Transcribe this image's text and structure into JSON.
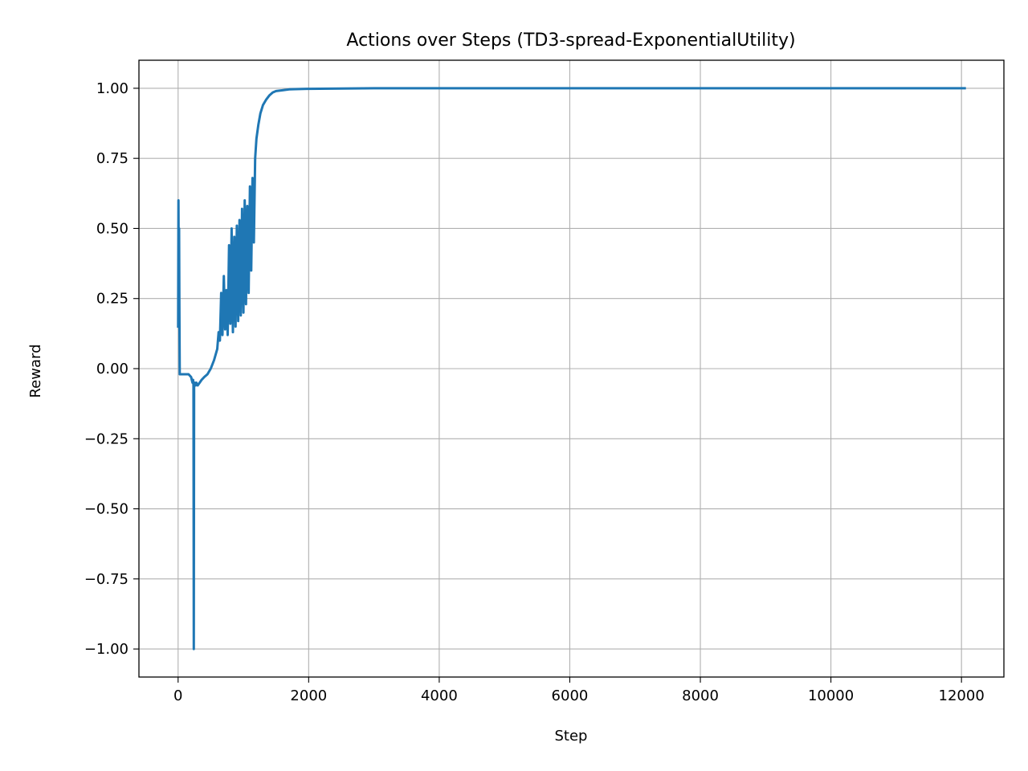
{
  "chart_data": {
    "type": "line",
    "title": "Actions over Steps (TD3-spread-ExponentialUtility)",
    "xlabel": "Step",
    "ylabel": "Reward",
    "xlim": [
      -600,
      12650
    ],
    "ylim": [
      -1.1,
      1.1
    ],
    "grid": true,
    "line_color": "#1f77b4",
    "x_ticks": [
      0,
      2000,
      4000,
      6000,
      8000,
      10000,
      12000
    ],
    "x_tick_labels": [
      "0",
      "2000",
      "4000",
      "6000",
      "8000",
      "10000",
      "12000"
    ],
    "y_ticks": [
      1.0,
      0.75,
      0.5,
      0.25,
      0.0,
      -0.25,
      -0.5,
      -0.75,
      -1.0
    ],
    "y_tick_labels": [
      "1.00",
      "0.75",
      "0.50",
      "0.25",
      "0.00",
      "−0.25",
      "−0.50",
      "−0.75",
      "−1.00"
    ],
    "series": [
      {
        "x": [
          0,
          5,
          10,
          15,
          20,
          25,
          30,
          40,
          80,
          120,
          160,
          200,
          210,
          220,
          230,
          235,
          240,
          245,
          250,
          255,
          260,
          270,
          280,
          300,
          330,
          360,
          400,
          450,
          500,
          550,
          600,
          620,
          640,
          660,
          680,
          700,
          720,
          740,
          760,
          780,
          800,
          820,
          840,
          860,
          880,
          900,
          920,
          940,
          960,
          980,
          1000,
          1020,
          1040,
          1060,
          1080,
          1100,
          1120,
          1140,
          1160,
          1180,
          1200,
          1230,
          1260,
          1300,
          1350,
          1400,
          1450,
          1500,
          1600,
          1700,
          1800,
          2000,
          2500,
          3000,
          4000,
          5000,
          6000,
          7000,
          8000,
          9000,
          10000,
          11000,
          12050
        ],
        "y": [
          0.15,
          0.6,
          0.3,
          0.5,
          0.2,
          -0.02,
          -0.02,
          -0.02,
          -0.02,
          -0.02,
          -0.02,
          -0.03,
          -0.04,
          -0.05,
          -0.04,
          -0.06,
          -1.0,
          -0.05,
          -0.05,
          -0.06,
          -0.05,
          -0.06,
          -0.05,
          -0.06,
          -0.05,
          -0.04,
          -0.03,
          -0.02,
          0.0,
          0.03,
          0.07,
          0.13,
          0.1,
          0.27,
          0.12,
          0.33,
          0.14,
          0.28,
          0.12,
          0.44,
          0.16,
          0.5,
          0.13,
          0.47,
          0.15,
          0.51,
          0.17,
          0.53,
          0.19,
          0.57,
          0.2,
          0.6,
          0.23,
          0.58,
          0.27,
          0.65,
          0.35,
          0.68,
          0.45,
          0.75,
          0.82,
          0.87,
          0.91,
          0.94,
          0.96,
          0.975,
          0.985,
          0.99,
          0.993,
          0.996,
          0.997,
          0.998,
          0.999,
          1.0,
          1.0,
          1.0,
          1.0,
          1.0,
          1.0,
          1.0,
          1.0,
          1.0,
          1.0
        ]
      }
    ]
  }
}
